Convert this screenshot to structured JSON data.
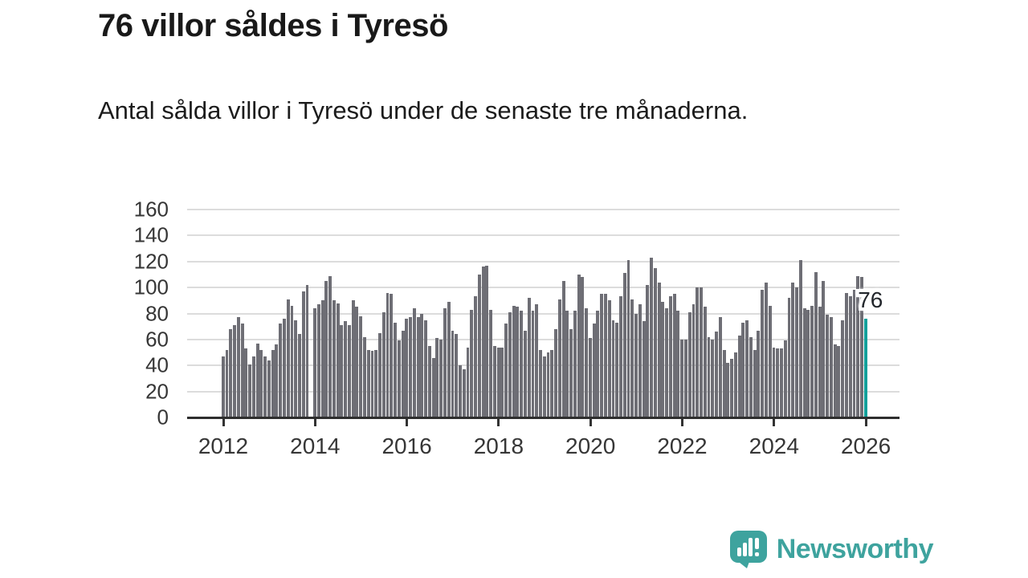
{
  "header": {
    "title": "76 villor såldes i Tyresö",
    "subtitle": "Antal sålda villor i Tyresö under de senaste tre månaderna."
  },
  "chart_data": {
    "type": "bar",
    "title": "76 villor såldes i Tyresö",
    "subtitle": "Antal sålda villor i Tyresö under de senaste tre månaderna.",
    "x_start": "2012-01",
    "x_freq": "monthly",
    "xlabel": "",
    "ylabel": "",
    "ylim": [
      0,
      160
    ],
    "yticks": [
      0,
      20,
      40,
      60,
      80,
      100,
      120,
      140,
      160
    ],
    "xticks": [
      2012,
      2014,
      2016,
      2018,
      2020,
      2022,
      2024,
      2026
    ],
    "grid": true,
    "legend": "none",
    "bar_color": "#6e6e75",
    "gridline_color": "#dcdcdc",
    "axis_color": "#2e2e2e",
    "tick_label_color": "#363636",
    "values": [
      47,
      52,
      68,
      71,
      77,
      72,
      53,
      41,
      47,
      57,
      52,
      47,
      44,
      52,
      56,
      72,
      76,
      91,
      86,
      75,
      64,
      97,
      102,
      null,
      84,
      87,
      90,
      105,
      109,
      90,
      88,
      71,
      74,
      71,
      90,
      85,
      78,
      62,
      52,
      51,
      52,
      65,
      81,
      96,
      95,
      73,
      59,
      67,
      76,
      77,
      84,
      77,
      80,
      75,
      55,
      46,
      61,
      60,
      84,
      89,
      67,
      64,
      40,
      37,
      54,
      83,
      93,
      110,
      116,
      117,
      83,
      55,
      54,
      54,
      72,
      81,
      86,
      85,
      82,
      67,
      92,
      82,
      87,
      52,
      47,
      50,
      52,
      68,
      91,
      105,
      82,
      68,
      82,
      110,
      108,
      84,
      61,
      72,
      82,
      95,
      95,
      90,
      75,
      73,
      93,
      111,
      121,
      91,
      80,
      87,
      74,
      102,
      123,
      115,
      104,
      89,
      84,
      93,
      95,
      82,
      60,
      60,
      81,
      87,
      100,
      100,
      85,
      62,
      60,
      66,
      77,
      52,
      42,
      45,
      50,
      63,
      73,
      75,
      62,
      52,
      67,
      98,
      104,
      86,
      54,
      53,
      53,
      59,
      92,
      104,
      100,
      121,
      84,
      83,
      86,
      112,
      85,
      105,
      79,
      77,
      56,
      55,
      75,
      96,
      93,
      98,
      109,
      108,
      76
    ],
    "highlight": {
      "index": 168,
      "value": 76,
      "label": "76",
      "color": "#12a19b"
    }
  },
  "footer": {
    "brand": "Newsworthy",
    "brand_color": "#3ea39e",
    "logo_icon": "bar-chart-speech-bubble-icon"
  }
}
